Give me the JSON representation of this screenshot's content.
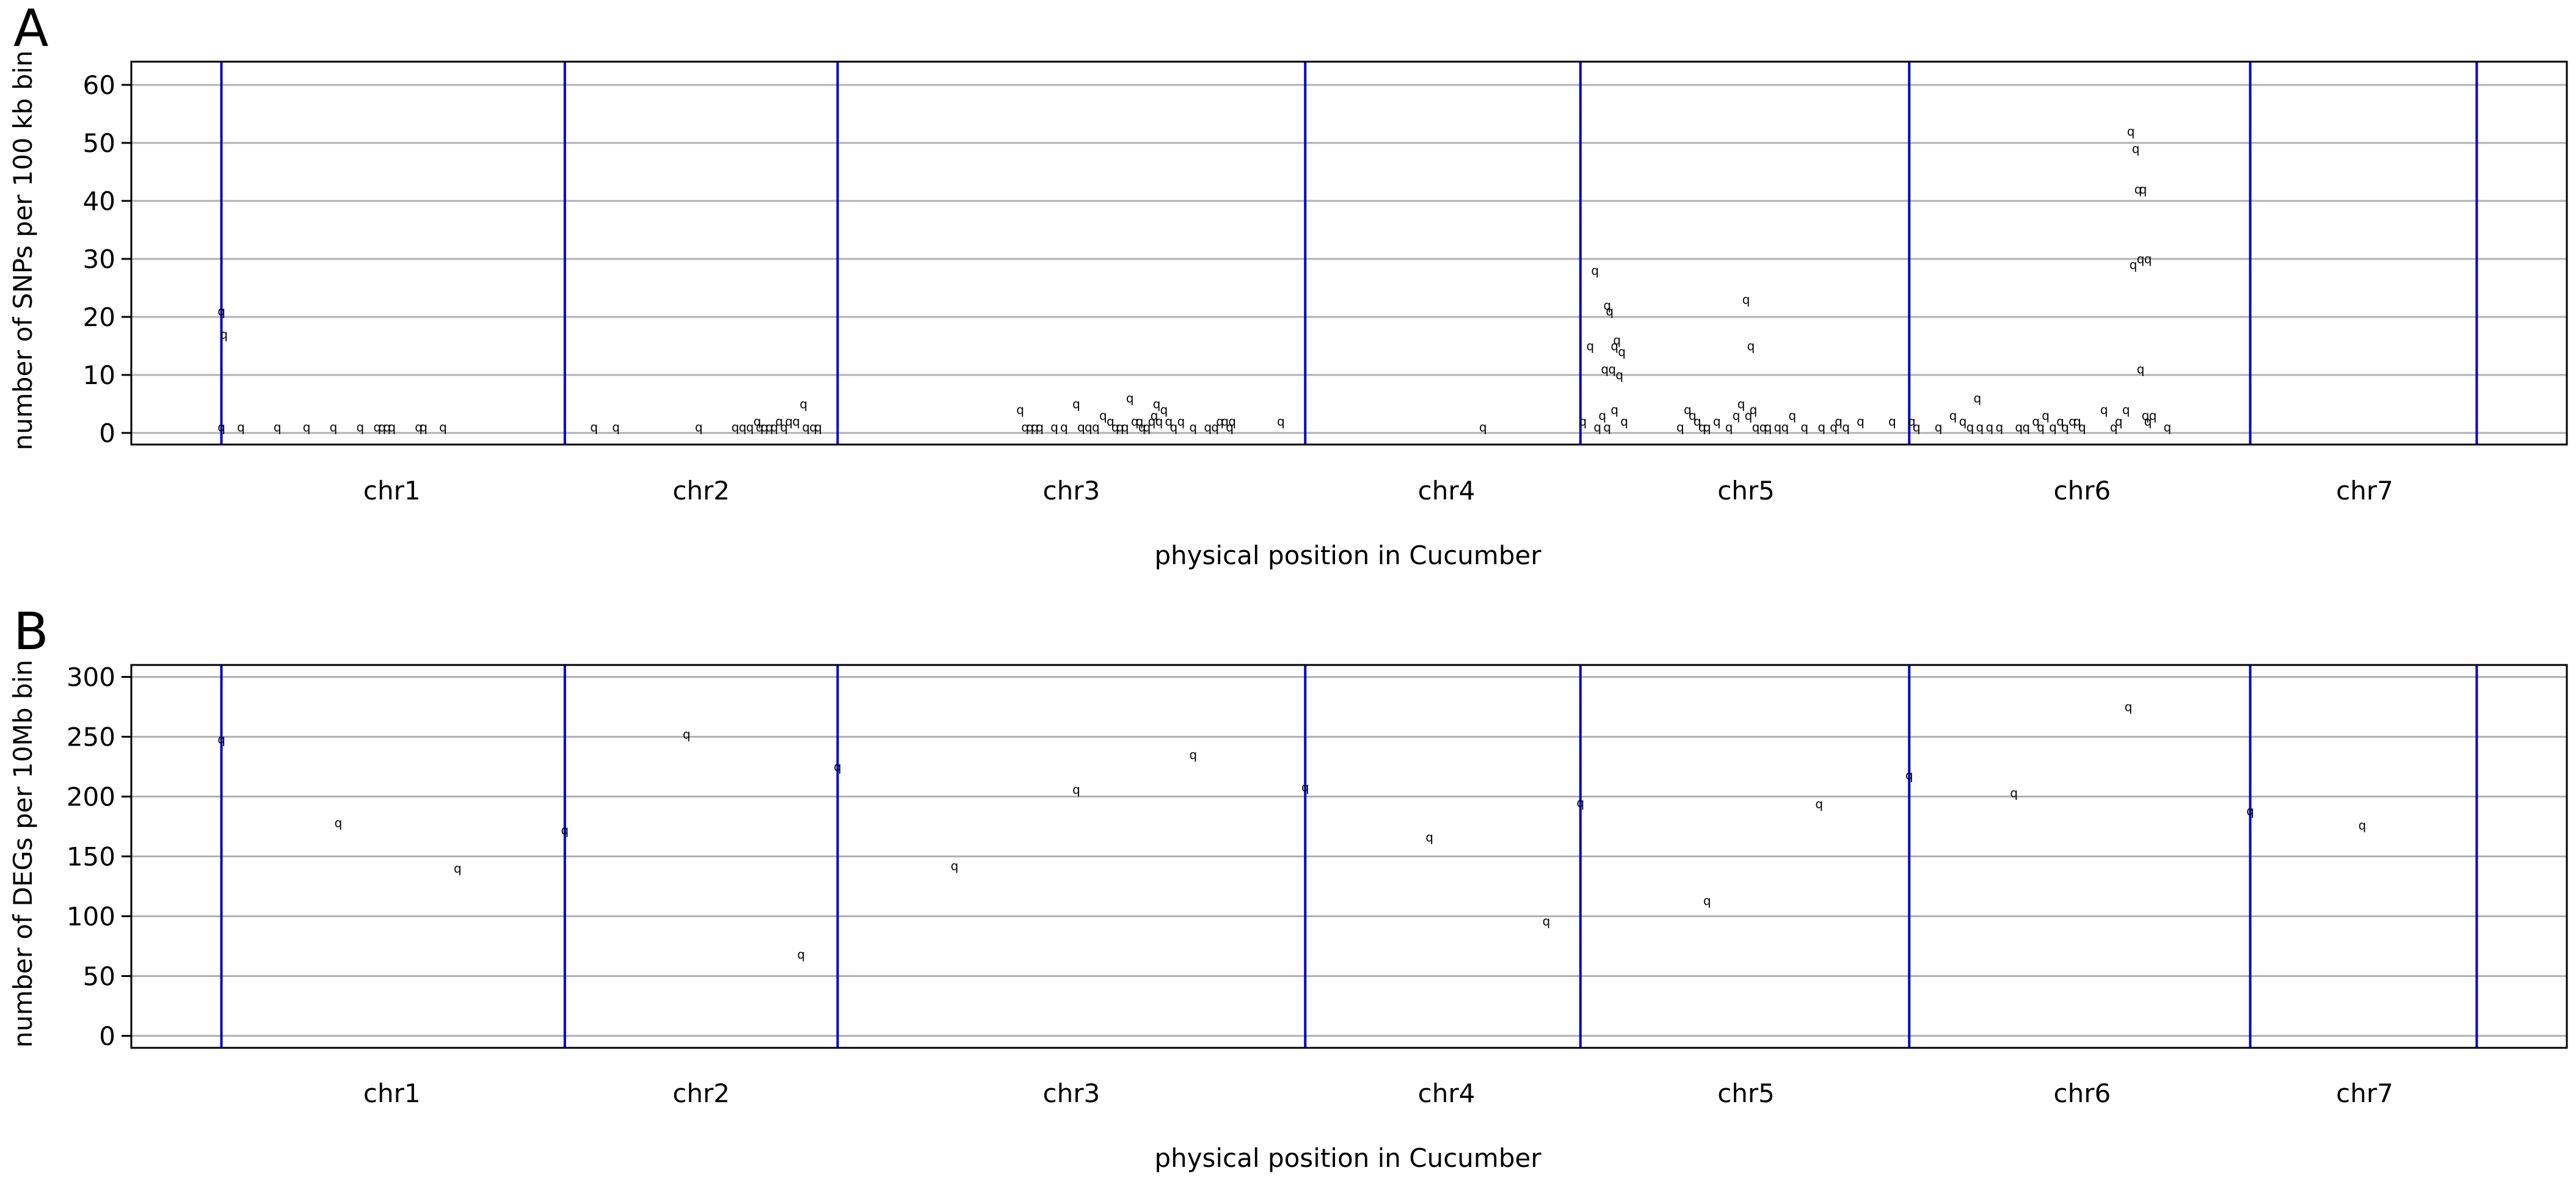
{
  "panels": [
    {
      "letter": "A",
      "ylabel": "number of SNPs per 100 kb bin",
      "xlabel": "physical position in Cucumber"
    },
    {
      "letter": "B",
      "ylabel": "number of DEGs per 10Mb bin",
      "xlabel": "physical position in Cucumber"
    }
  ],
  "colors": {
    "boundary": "#0000cc",
    "grid": "#b0b0b0",
    "points": "#000000",
    "frame": "#000000"
  },
  "chart_data": [
    {
      "type": "scatter",
      "title": "A",
      "xlabel": "physical position in Cucumber",
      "ylabel": "number of SNPs per 100 kb bin",
      "xlim": [
        0,
        100
      ],
      "ylim": [
        -2,
        64
      ],
      "yticks": [
        0,
        10,
        20,
        30,
        40,
        50,
        60
      ],
      "grid": true,
      "chromosomes": [
        {
          "name": "chr1",
          "center": 10.7
        },
        {
          "name": "chr2",
          "center": 23.4
        },
        {
          "name": "chr3",
          "center": 38.6
        },
        {
          "name": "chr4",
          "center": 54.0
        },
        {
          "name": "chr5",
          "center": 66.3
        },
        {
          "name": "chr6",
          "center": 80.1
        },
        {
          "name": "chr7",
          "center": 91.7
        }
      ],
      "boundaries": [
        3.7,
        17.8,
        29.0,
        48.2,
        59.5,
        73.0,
        87.0,
        96.3
      ],
      "points": [
        [
          3.7,
          1
        ],
        [
          3.7,
          21
        ],
        [
          3.8,
          17
        ],
        [
          4.5,
          1
        ],
        [
          6.0,
          1
        ],
        [
          7.2,
          1
        ],
        [
          8.3,
          1
        ],
        [
          9.4,
          1
        ],
        [
          10.1,
          1
        ],
        [
          10.3,
          1
        ],
        [
          10.5,
          1
        ],
        [
          10.7,
          1
        ],
        [
          11.8,
          1
        ],
        [
          12.0,
          1
        ],
        [
          12.8,
          1
        ],
        [
          19.0,
          1
        ],
        [
          19.9,
          1
        ],
        [
          23.3,
          1
        ],
        [
          24.8,
          1
        ],
        [
          25.1,
          1
        ],
        [
          25.4,
          1
        ],
        [
          25.7,
          2
        ],
        [
          25.8,
          1
        ],
        [
          26.0,
          1
        ],
        [
          26.2,
          1
        ],
        [
          26.4,
          1
        ],
        [
          26.6,
          2
        ],
        [
          26.8,
          1
        ],
        [
          27.0,
          2
        ],
        [
          27.3,
          2
        ],
        [
          27.6,
          5
        ],
        [
          27.7,
          1
        ],
        [
          28.0,
          1
        ],
        [
          28.2,
          1
        ],
        [
          36.5,
          4
        ],
        [
          36.7,
          1
        ],
        [
          36.9,
          1
        ],
        [
          37.1,
          1
        ],
        [
          37.3,
          1
        ],
        [
          37.9,
          1
        ],
        [
          38.3,
          1
        ],
        [
          38.8,
          5
        ],
        [
          39.0,
          1
        ],
        [
          39.3,
          1
        ],
        [
          39.6,
          1
        ],
        [
          39.9,
          3
        ],
        [
          40.2,
          2
        ],
        [
          40.4,
          1
        ],
        [
          40.6,
          1
        ],
        [
          40.8,
          1
        ],
        [
          41.0,
          6
        ],
        [
          41.2,
          2
        ],
        [
          41.4,
          2
        ],
        [
          41.5,
          1
        ],
        [
          41.7,
          1
        ],
        [
          41.9,
          2
        ],
        [
          42.0,
          3
        ],
        [
          42.1,
          5
        ],
        [
          42.2,
          2
        ],
        [
          42.4,
          4
        ],
        [
          42.6,
          2
        ],
        [
          42.8,
          1
        ],
        [
          43.1,
          2
        ],
        [
          43.6,
          1
        ],
        [
          44.2,
          1
        ],
        [
          44.5,
          1
        ],
        [
          44.7,
          2
        ],
        [
          44.9,
          2
        ],
        [
          45.1,
          1
        ],
        [
          45.2,
          2
        ],
        [
          47.2,
          2
        ],
        [
          55.5,
          1
        ],
        [
          59.6,
          2
        ],
        [
          59.9,
          15
        ],
        [
          60.1,
          28
        ],
        [
          60.2,
          1
        ],
        [
          60.4,
          3
        ],
        [
          60.5,
          11
        ],
        [
          60.6,
          22
        ],
        [
          60.7,
          21
        ],
        [
          60.8,
          11
        ],
        [
          60.9,
          15
        ],
        [
          60.9,
          4
        ],
        [
          61.0,
          16
        ],
        [
          61.1,
          10
        ],
        [
          61.2,
          14
        ],
        [
          61.3,
          2
        ],
        [
          60.6,
          1
        ],
        [
          63.6,
          1
        ],
        [
          63.9,
          4
        ],
        [
          64.1,
          3
        ],
        [
          64.3,
          2
        ],
        [
          64.5,
          1
        ],
        [
          64.7,
          1
        ],
        [
          65.1,
          2
        ],
        [
          65.6,
          1
        ],
        [
          65.9,
          3
        ],
        [
          66.1,
          5
        ],
        [
          66.3,
          23
        ],
        [
          66.4,
          3
        ],
        [
          66.5,
          15
        ],
        [
          66.6,
          4
        ],
        [
          66.7,
          1
        ],
        [
          67.0,
          1
        ],
        [
          67.2,
          1
        ],
        [
          67.6,
          1
        ],
        [
          67.9,
          1
        ],
        [
          68.2,
          3
        ],
        [
          68.7,
          1
        ],
        [
          69.4,
          1
        ],
        [
          69.9,
          1
        ],
        [
          70.1,
          2
        ],
        [
          70.4,
          1
        ],
        [
          71.0,
          2
        ],
        [
          72.3,
          2
        ],
        [
          73.1,
          2
        ],
        [
          73.3,
          1
        ],
        [
          74.2,
          1
        ],
        [
          74.8,
          3
        ],
        [
          75.2,
          2
        ],
        [
          75.5,
          1
        ],
        [
          75.8,
          6
        ],
        [
          75.9,
          1
        ],
        [
          76.3,
          1
        ],
        [
          76.7,
          1
        ],
        [
          77.5,
          1
        ],
        [
          77.8,
          1
        ],
        [
          78.2,
          2
        ],
        [
          78.4,
          1
        ],
        [
          78.6,
          3
        ],
        [
          78.9,
          1
        ],
        [
          79.2,
          2
        ],
        [
          79.4,
          1
        ],
        [
          79.7,
          2
        ],
        [
          79.9,
          2
        ],
        [
          80.1,
          1
        ],
        [
          81.0,
          4
        ],
        [
          81.4,
          1
        ],
        [
          81.6,
          2
        ],
        [
          81.9,
          4
        ],
        [
          82.1,
          52
        ],
        [
          82.2,
          29
        ],
        [
          82.3,
          49
        ],
        [
          82.4,
          42
        ],
        [
          82.5,
          30
        ],
        [
          82.6,
          42
        ],
        [
          82.5,
          11
        ],
        [
          82.7,
          3
        ],
        [
          82.8,
          30
        ],
        [
          82.8,
          2
        ],
        [
          83.0,
          3
        ],
        [
          83.6,
          1
        ]
      ]
    },
    {
      "type": "scatter",
      "title": "B",
      "xlabel": "physical position in Cucumber",
      "ylabel": "number of DEGs per 10Mb bin",
      "xlim": [
        0,
        100
      ],
      "ylim": [
        -10,
        310
      ],
      "yticks": [
        0,
        50,
        100,
        150,
        200,
        250,
        300
      ],
      "grid": true,
      "chromosomes": [
        {
          "name": "chr1",
          "center": 10.7
        },
        {
          "name": "chr2",
          "center": 23.4
        },
        {
          "name": "chr3",
          "center": 38.6
        },
        {
          "name": "chr4",
          "center": 54.0
        },
        {
          "name": "chr5",
          "center": 66.3
        },
        {
          "name": "chr6",
          "center": 80.1
        },
        {
          "name": "chr7",
          "center": 91.7
        }
      ],
      "boundaries": [
        3.7,
        17.8,
        29.0,
        48.2,
        59.5,
        73.0,
        87.0,
        96.3
      ],
      "points": [
        [
          3.7,
          248
        ],
        [
          8.5,
          178
        ],
        [
          13.4,
          140
        ],
        [
          17.8,
          172
        ],
        [
          22.8,
          252
        ],
        [
          27.5,
          68
        ],
        [
          29.0,
          225
        ],
        [
          33.8,
          142
        ],
        [
          38.8,
          206
        ],
        [
          43.6,
          235
        ],
        [
          48.2,
          208
        ],
        [
          53.3,
          166
        ],
        [
          58.1,
          96
        ],
        [
          59.5,
          195
        ],
        [
          64.7,
          113
        ],
        [
          69.3,
          194
        ],
        [
          73.0,
          218
        ],
        [
          77.3,
          203
        ],
        [
          82.0,
          275
        ],
        [
          87.0,
          188
        ],
        [
          91.6,
          176
        ]
      ]
    }
  ]
}
